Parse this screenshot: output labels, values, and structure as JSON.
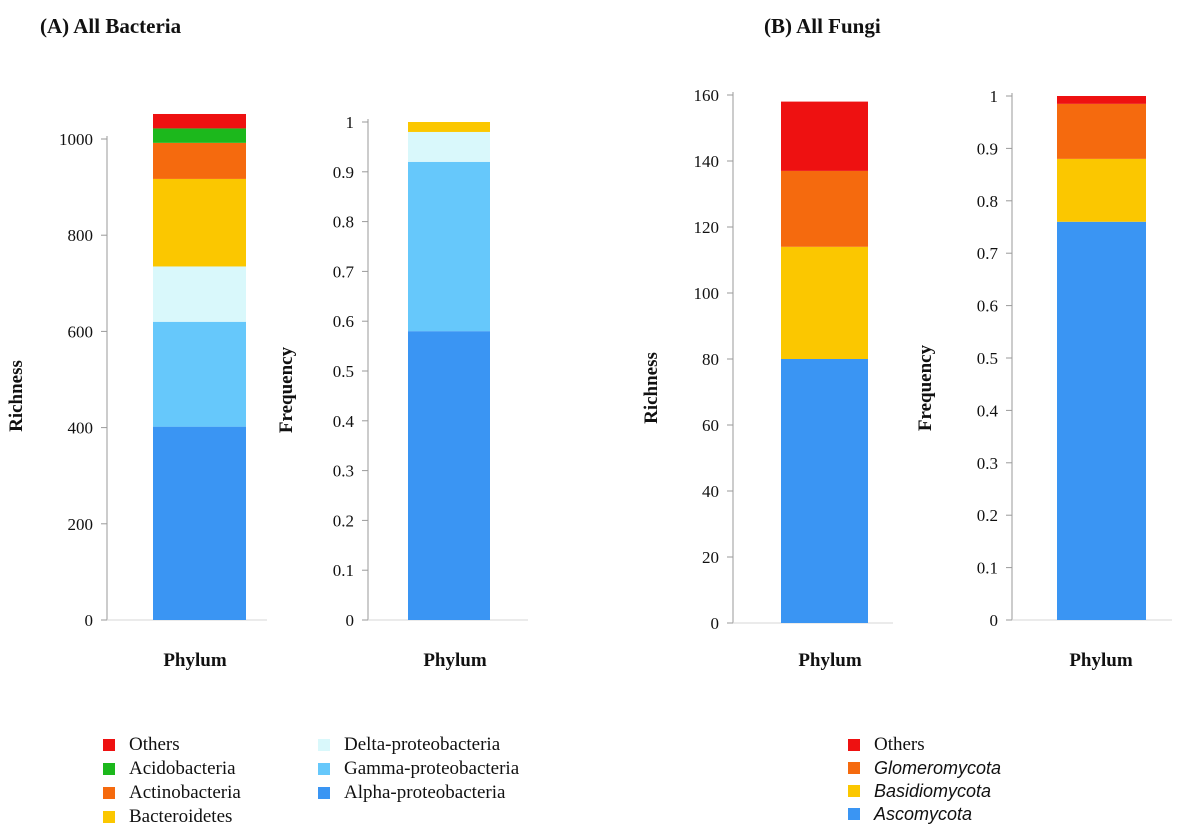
{
  "panels": {
    "a_title": "(A) All Bacteria",
    "b_title": "(B) All Fungi"
  },
  "legend_bacteria": {
    "col1": [
      {
        "label": "Others",
        "color": "#ee1111"
      },
      {
        "label": "Acidobacteria",
        "color": "#1cb81c"
      },
      {
        "label": "Actinobacteria",
        "color": "#f56a0e"
      },
      {
        "label": "Bacteroidetes",
        "color": "#fbc700"
      }
    ],
    "col2": [
      {
        "label": "Delta-proteobacteria",
        "color": "#d9f8fb"
      },
      {
        "label": "Gamma-proteobacteria",
        "color": "#66c8fb"
      },
      {
        "label": "Alpha-proteobacteria",
        "color": "#3a95f3"
      }
    ]
  },
  "legend_fungi": [
    {
      "label": "Others",
      "color": "#ee1111"
    },
    {
      "label": "Glomeromycota",
      "color": "#f56a0e"
    },
    {
      "label": "Basidiomycota",
      "color": "#fbc700"
    },
    {
      "label": "Ascomycota",
      "color": "#3a95f3"
    }
  ],
  "chart_data": [
    {
      "type": "bar",
      "stacked": true,
      "panel": "A",
      "categories": [
        "Phylum"
      ],
      "xlabel": "Phylum",
      "ylabel": "Richness",
      "ylim": [
        0,
        1000
      ],
      "yticks": [
        "0",
        "200",
        "400",
        "600",
        "800",
        "1000"
      ],
      "series": [
        {
          "name": "Alpha-proteobacteria",
          "values": [
            402
          ],
          "color": "#3a95f3"
        },
        {
          "name": "Gamma-proteobacteria",
          "values": [
            218
          ],
          "color": "#66c8fb"
        },
        {
          "name": "Delta-proteobacteria",
          "values": [
            115
          ],
          "color": "#d9f8fb"
        },
        {
          "name": "Bacteroidetes",
          "values": [
            182
          ],
          "color": "#fbc700"
        },
        {
          "name": "Actinobacteria",
          "values": [
            75
          ],
          "color": "#f56a0e"
        },
        {
          "name": "Acidobacteria",
          "values": [
            30
          ],
          "color": "#1cb81c"
        },
        {
          "name": "Others",
          "values": [
            30
          ],
          "color": "#ee1111"
        }
      ]
    },
    {
      "type": "bar",
      "stacked": true,
      "panel": "A",
      "categories": [
        "Phylum"
      ],
      "xlabel": "Phylum",
      "ylabel": "Frequency",
      "ylim": [
        0,
        1
      ],
      "yticks": [
        "0",
        "0.1",
        "0.2",
        "0.3",
        "0.4",
        "0.5",
        "0.6",
        "0.7",
        "0.8",
        "0.9",
        "1"
      ],
      "series": [
        {
          "name": "Alpha-proteobacteria",
          "values": [
            0.58
          ],
          "color": "#3a95f3"
        },
        {
          "name": "Gamma-proteobacteria",
          "values": [
            0.34
          ],
          "color": "#66c8fb"
        },
        {
          "name": "Delta-proteobacteria",
          "values": [
            0.06
          ],
          "color": "#d9f8fb"
        },
        {
          "name": "Bacteroidetes",
          "values": [
            0.02
          ],
          "color": "#fbc700"
        }
      ]
    },
    {
      "type": "bar",
      "stacked": true,
      "panel": "B",
      "categories": [
        "Phylum"
      ],
      "xlabel": "Phylum",
      "ylabel": "Richness",
      "ylim": [
        0,
        160
      ],
      "yticks": [
        "0",
        "20",
        "40",
        "60",
        "80",
        "100",
        "120",
        "140",
        "160"
      ],
      "series": [
        {
          "name": "Ascomycota",
          "values": [
            80
          ],
          "color": "#3a95f3"
        },
        {
          "name": "Basidiomycota",
          "values": [
            34
          ],
          "color": "#fbc700"
        },
        {
          "name": "Glomeromycota",
          "values": [
            23
          ],
          "color": "#f56a0e"
        },
        {
          "name": "Others",
          "values": [
            21
          ],
          "color": "#ee1111"
        }
      ]
    },
    {
      "type": "bar",
      "stacked": true,
      "panel": "B",
      "categories": [
        "Phylum"
      ],
      "xlabel": "Phylum",
      "ylabel": "Frequency",
      "ylim": [
        0,
        1
      ],
      "yticks": [
        "0",
        "0.1",
        "0.2",
        "0.3",
        "0.4",
        "0.5",
        "0.6",
        "0.7",
        "0.8",
        "0.9",
        "1"
      ],
      "series": [
        {
          "name": "Ascomycota",
          "values": [
            0.76
          ],
          "color": "#3a95f3"
        },
        {
          "name": "Basidiomycota",
          "values": [
            0.12
          ],
          "color": "#fbc700"
        },
        {
          "name": "Glomeromycota",
          "values": [
            0.105
          ],
          "color": "#f56a0e"
        },
        {
          "name": "Others",
          "values": [
            0.015
          ],
          "color": "#ee1111"
        }
      ]
    }
  ]
}
